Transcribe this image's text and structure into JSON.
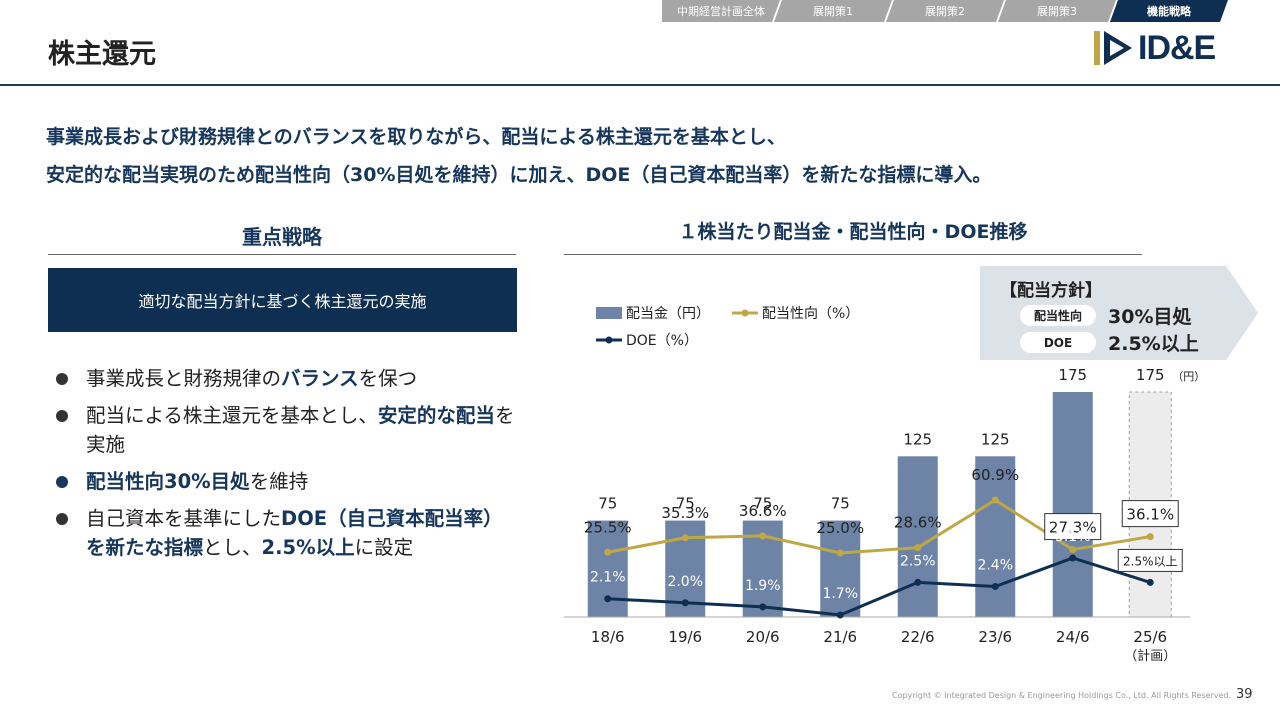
{
  "nav": {
    "tabs": [
      {
        "label": "中期経営計画全体",
        "active": false
      },
      {
        "label": "展開策1",
        "active": false
      },
      {
        "label": "展開策2",
        "active": false
      },
      {
        "label": "展開策3",
        "active": false
      },
      {
        "label": "機能戦略",
        "active": true
      }
    ]
  },
  "header": {
    "title": "株主還元",
    "logo_text": "ID&E"
  },
  "lead": {
    "line1": "事業成長および財務規律とのバランスを取りながら、配当による株主還元を基本とし、",
    "line2": "安定的な配当実現のため配当性向（30%目処を維持）に加え、DOE（自己資本配当率）を新たな指標に導入。"
  },
  "left": {
    "heading": "重点戦略",
    "box_text": "適切な配当方針に基づく株主還元の実施",
    "bullets": [
      {
        "pre": "事業成長と財務規律の",
        "bold": "バランス",
        "post": "を保つ"
      },
      {
        "pre": "配当による株主還元を基本とし、",
        "bold": "安定的な配当",
        "post": "を実施"
      },
      {
        "pre": "",
        "bold": "配当性向30%目処",
        "post": "を維持"
      },
      {
        "pre": "自己資本を基準にした",
        "bold": "DOE（自己資本配当率）を新たな指標",
        "mid": "とし、",
        "bold2": "2.5%以上",
        "post": "に設定"
      }
    ]
  },
  "policy": {
    "title": "【配当方針】",
    "row1_label": "配当性向",
    "row1_value": "30%目処",
    "row2_label": "DOE",
    "row2_value": "2.5%以上"
  },
  "chart_data": {
    "type": "bar",
    "title": "１株当たり配当金・配当性向・DOE推移",
    "categories": [
      "18/6",
      "19/6",
      "20/6",
      "21/6",
      "22/6",
      "23/6",
      "24/6",
      "25/6"
    ],
    "category_note_last": "（計画）",
    "series": [
      {
        "name": "配当金（円）",
        "kind": "bar",
        "color": "#6d84a6",
        "values": [
          75,
          75,
          75,
          75,
          125,
          125,
          175,
          175
        ],
        "labels": [
          "75",
          "75",
          "75",
          "75",
          "125",
          "125",
          "175",
          "175"
        ],
        "last_is_plan": true
      },
      {
        "name": "配当性向（%）",
        "kind": "line",
        "color": "#bfa844",
        "values": [
          25.5,
          35.3,
          36.6,
          25.0,
          28.6,
          60.9,
          27.3,
          36.1
        ],
        "labels": [
          "25.5%",
          "35.3%",
          "36.6%",
          "25.0%",
          "28.6%",
          "60.9%",
          "27.3%",
          "36.1%"
        ]
      },
      {
        "name": "DOE（%）",
        "kind": "line",
        "color": "#0f2f52",
        "values": [
          2.1,
          2.0,
          1.9,
          1.7,
          2.5,
          2.4,
          3.1,
          2.5
        ],
        "labels": [
          "2.1%",
          "2.0%",
          "1.9%",
          "1.7%",
          "2.5%",
          "2.4%",
          "3.1%",
          "2.5%以上"
        ]
      }
    ],
    "unit_label": "（円）",
    "legend_position": "top-left",
    "grid": false
  },
  "footer": {
    "copyright": "Copyright © Integrated Design & Engineering Holdings Co., Ltd.  All Rights Reserved.",
    "page_number": "39"
  },
  "colors": {
    "navy": "#0f2f52",
    "bar": "#6d84a6",
    "gold": "#bfa844",
    "tab_gray": "#a6a6a6"
  }
}
